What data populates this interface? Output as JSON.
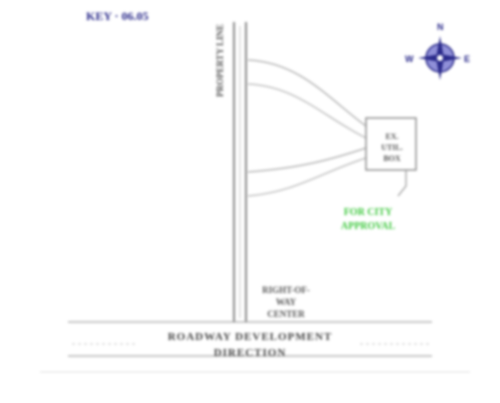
{
  "labels": {
    "id_label": "KEY · 06.05",
    "faint_note": "",
    "vertical_left": "PROPERTY LINE",
    "box_label": "EX. UTIL. BOX",
    "green_label": "FOR CITY APPROVAL",
    "center_label": "RIGHT-OF-WAY CENTER",
    "bottom_label": "ROADWAY DEVELOPMENT DIRECTION"
  },
  "compass": {
    "north": "N",
    "south": "",
    "east": "E",
    "west": "W"
  },
  "colors": {
    "background": "#ffffff",
    "line": "#9a9a9a",
    "dark_line": "#555555",
    "accent_blue": "#2a2a8a",
    "accent_green": "#3ec83e"
  }
}
